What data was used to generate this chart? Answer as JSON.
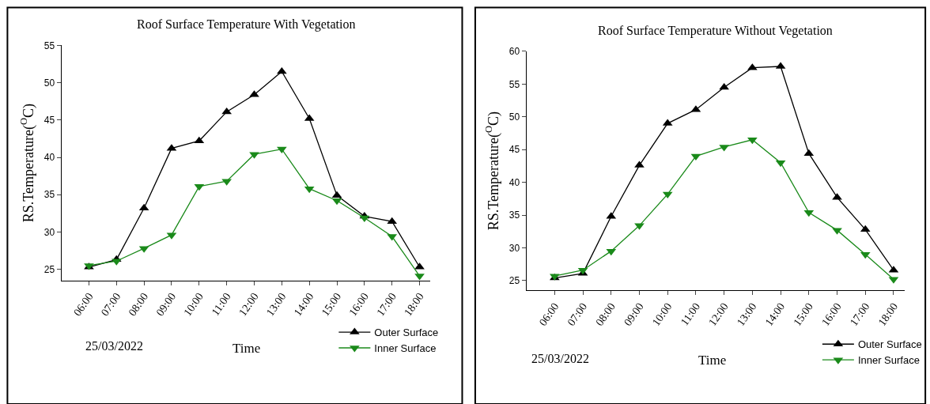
{
  "chart_data": [
    {
      "type": "line",
      "title": "Roof Surface Temperature With Vegetation",
      "xlabel": "Time",
      "ylabel": "RS.Temperature($^{O}$C)",
      "categories": [
        "06:00",
        "07:00",
        "08:00",
        "09:00",
        "10:00",
        "11:00",
        "12:00",
        "13:00",
        "14:00",
        "15:00",
        "16:00",
        "17:00",
        "18:00"
      ],
      "series": [
        {
          "name": "Outer Surface",
          "color": "#000000",
          "values": [
            25.3,
            26.3,
            33.2,
            41.2,
            42.2,
            46.1,
            48.4,
            51.5,
            45.2,
            34.9,
            32.1,
            31.4,
            25.3
          ]
        },
        {
          "name": "Inner Surface",
          "color": "#1a8a1a",
          "values": [
            25.5,
            26.1,
            27.8,
            29.6,
            36.1,
            36.8,
            40.4,
            41.1,
            35.8,
            34.2,
            31.9,
            29.4,
            24.1
          ]
        }
      ],
      "ylim": [
        23.5,
        55
      ],
      "yticks": [
        25,
        30,
        35,
        40,
        45,
        50,
        55
      ],
      "legend": "bottom right",
      "marker": "triangle",
      "annotations": [
        "25/03/2022"
      ]
    },
    {
      "type": "line",
      "title": "Roof Surface Temperature Without Vegetation",
      "xlabel": "Time",
      "ylabel": "RS.Temperature($^{O}$C)",
      "categories": [
        "06:00",
        "07:00",
        "08:00",
        "09:00",
        "10:00",
        "11:00",
        "12:00",
        "13:00",
        "14:00",
        "15:00",
        "16:00",
        "17:00",
        "18:00"
      ],
      "series": [
        {
          "name": "Outer Surface",
          "color": "#000000",
          "values": [
            25.4,
            26.1,
            34.8,
            42.6,
            49.0,
            51.1,
            54.5,
            57.5,
            57.7,
            44.4,
            37.7,
            32.8,
            26.6
          ]
        },
        {
          "name": "Inner Surface",
          "color": "#1a8a1a",
          "values": [
            25.7,
            26.6,
            29.5,
            33.4,
            38.2,
            44.0,
            45.4,
            46.5,
            43.0,
            35.4,
            32.7,
            29.0,
            25.2
          ]
        }
      ],
      "ylim": [
        23.5,
        60
      ],
      "yticks": [
        25,
        30,
        35,
        40,
        45,
        50,
        55,
        60
      ],
      "legend": "bottom right",
      "marker": "triangle",
      "annotations": [
        "25/03/2022"
      ]
    }
  ]
}
